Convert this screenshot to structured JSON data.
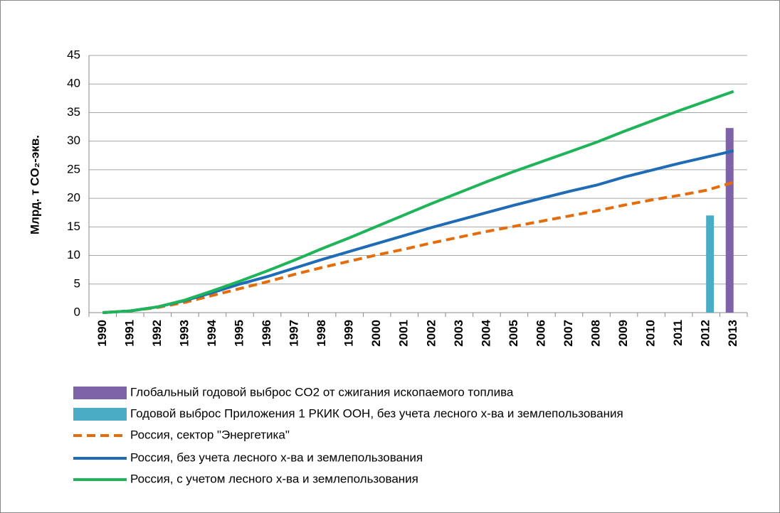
{
  "chart_data": {
    "type": "combo",
    "y_label": "Млрд. т CO₂-экв.",
    "categories": [
      "1990",
      "1991",
      "1992",
      "1993",
      "1994",
      "1995",
      "1996",
      "1997",
      "1998",
      "1999",
      "2000",
      "2001",
      "2002",
      "2003",
      "2004",
      "2005",
      "2006",
      "2007",
      "2008",
      "2009",
      "2010",
      "2011",
      "2012",
      "2013"
    ],
    "ylim": [
      0,
      45
    ],
    "yticks": [
      0,
      5,
      10,
      15,
      20,
      25,
      30,
      35,
      40,
      45
    ],
    "grid": true,
    "legend": "bottom",
    "series": [
      {
        "name": "Глобальный годовой выброс CO2 от сжигания ископаемого топлива",
        "kind": "bar",
        "color": "#7f63a8",
        "values": [
          null,
          null,
          null,
          null,
          null,
          null,
          null,
          null,
          null,
          null,
          null,
          null,
          null,
          null,
          null,
          null,
          null,
          null,
          null,
          null,
          null,
          null,
          null,
          32.3
        ]
      },
      {
        "name": "Годовой выброс Приложения 1 РКИК ООН, без учета лесного х-ва и землепользования",
        "kind": "bar",
        "color": "#4bacc6",
        "values": [
          null,
          null,
          null,
          null,
          null,
          null,
          null,
          null,
          null,
          null,
          null,
          null,
          null,
          null,
          null,
          null,
          null,
          null,
          null,
          null,
          null,
          null,
          17.0,
          null
        ]
      },
      {
        "name": "Россия, сектор \"Энергетика\"",
        "kind": "line",
        "dash": true,
        "color": "#e46c0a",
        "values": [
          0,
          0.3,
          0.9,
          1.8,
          3.0,
          4.2,
          5.4,
          6.7,
          7.9,
          9.0,
          10.1,
          11.1,
          12.2,
          13.2,
          14.2,
          15.1,
          16.0,
          16.9,
          17.8,
          18.8,
          19.7,
          20.5,
          21.4,
          22.8
        ]
      },
      {
        "name": "Россия, без учета лесного х-ва и землепользования",
        "kind": "line",
        "dash": false,
        "color": "#1f6bb5",
        "values": [
          0,
          0.3,
          1.0,
          2.1,
          3.5,
          5.0,
          6.3,
          7.8,
          9.3,
          10.7,
          12.1,
          13.5,
          14.9,
          16.2,
          17.5,
          18.8,
          20.0,
          21.2,
          22.3,
          23.7,
          24.9,
          26.1,
          27.2,
          28.3
        ]
      },
      {
        "name": "Россия, с учетом лесного х-ва и землепользования",
        "kind": "line",
        "dash": false,
        "color": "#1fb45a",
        "values": [
          0,
          0.3,
          1.0,
          2.2,
          3.8,
          5.5,
          7.3,
          9.2,
          11.2,
          13.1,
          15.1,
          17.1,
          19.1,
          21.0,
          22.9,
          24.7,
          26.4,
          28.1,
          29.8,
          31.7,
          33.5,
          35.3,
          37.0,
          38.7
        ]
      }
    ]
  }
}
